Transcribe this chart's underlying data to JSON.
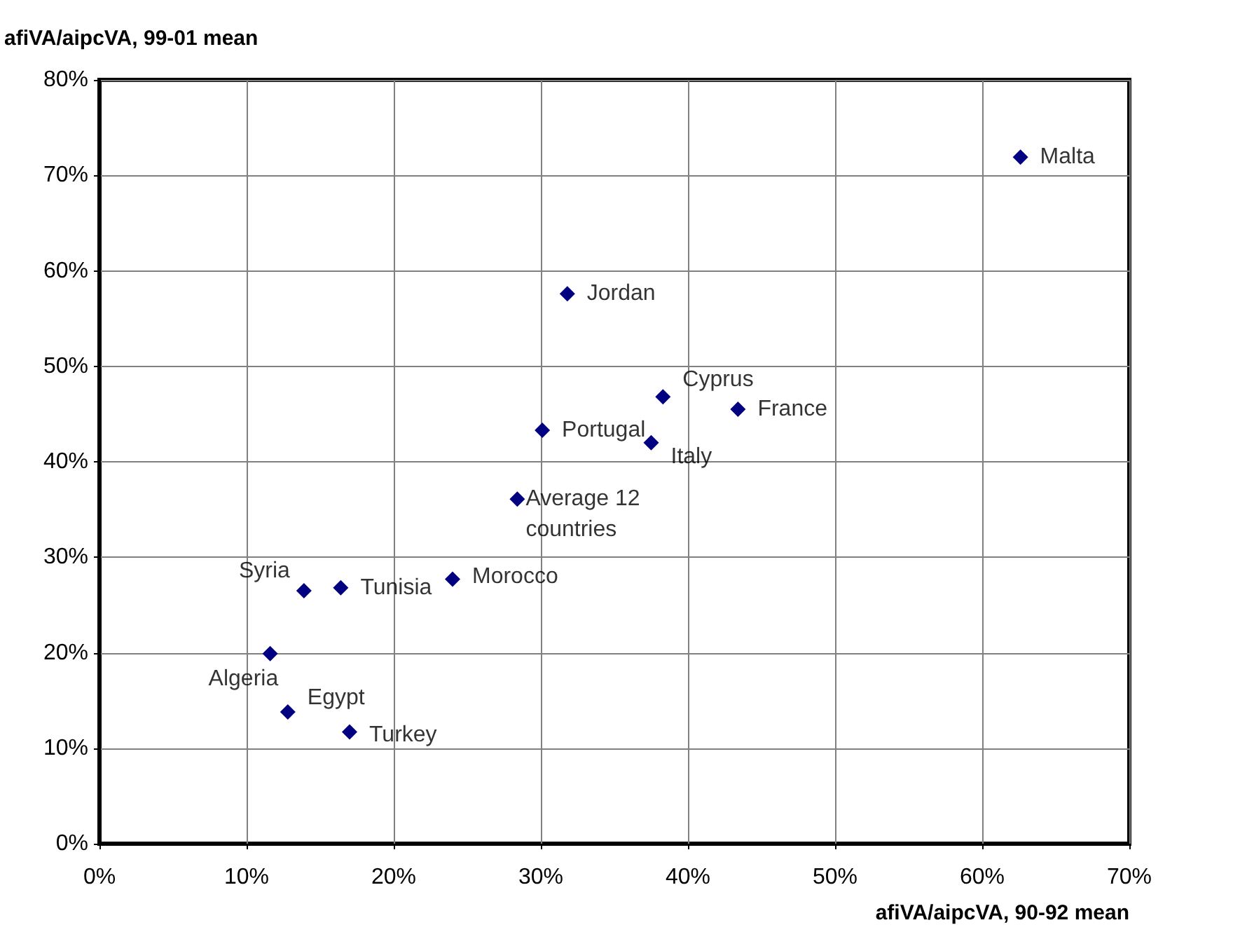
{
  "chart_data": {
    "type": "scatter",
    "xlabel": "afiVA/aipcVA, 90-92 mean",
    "ylabel": "afiVA/aipcVA, 99-01 mean",
    "series": [
      {
        "color": "#000080",
        "x": [
          62.6,
          31.8,
          38.3,
          43.4,
          30.1,
          37.5,
          28.4,
          24.0,
          13.9,
          16.4,
          11.6,
          12.8,
          17.0
        ],
        "values": [
          71.9,
          57.6,
          46.8,
          45.5,
          43.3,
          42.0,
          36.1,
          27.7,
          26.5,
          26.8,
          19.9,
          13.8,
          11.7
        ]
      }
    ],
    "annotations": [
      {
        "text": "Malta",
        "x": 62.6,
        "y": 71.9
      },
      {
        "text": "Jordan",
        "x": 31.8,
        "y": 57.6
      },
      {
        "text": "Cyprus",
        "x": 38.3,
        "y": 46.8
      },
      {
        "text": "France",
        "x": 43.4,
        "y": 45.5
      },
      {
        "text": "Portugal",
        "x": 30.1,
        "y": 43.3
      },
      {
        "text": "Italy",
        "x": 37.5,
        "y": 42.0
      },
      {
        "text": "Average 12 countries",
        "x": 28.4,
        "y": 36.1
      },
      {
        "text": "Morocco",
        "x": 24.0,
        "y": 27.7
      },
      {
        "text": "Syria",
        "x": 13.9,
        "y": 26.5
      },
      {
        "text": "Tunisia",
        "x": 16.4,
        "y": 26.8
      },
      {
        "text": "Algeria",
        "x": 11.6,
        "y": 19.9
      },
      {
        "text": "Egypt",
        "x": 12.8,
        "y": 13.8
      },
      {
        "text": "Turkey",
        "x": 17.0,
        "y": 11.7
      }
    ],
    "xlim": [
      0,
      70
    ],
    "ylim": [
      0,
      80
    ],
    "xticks": [
      {
        "value": 0,
        "label": "0%"
      },
      {
        "value": 10,
        "label": "10%"
      },
      {
        "value": 20,
        "label": "20%"
      },
      {
        "value": 30,
        "label": "30%"
      },
      {
        "value": 40,
        "label": "40%"
      },
      {
        "value": 50,
        "label": "50%"
      },
      {
        "value": 60,
        "label": "60%"
      },
      {
        "value": 70,
        "label": "70%"
      }
    ],
    "yticks": [
      {
        "value": 0,
        "label": "0%"
      },
      {
        "value": 10,
        "label": "10%"
      },
      {
        "value": 20,
        "label": "20%"
      },
      {
        "value": 30,
        "label": "30%"
      },
      {
        "value": 40,
        "label": "40%"
      },
      {
        "value": 50,
        "label": "50%"
      },
      {
        "value": 60,
        "label": "60%"
      },
      {
        "value": 70,
        "label": "70%"
      },
      {
        "value": 80,
        "label": "80%"
      }
    ],
    "grid": true,
    "marker": "diamond"
  }
}
